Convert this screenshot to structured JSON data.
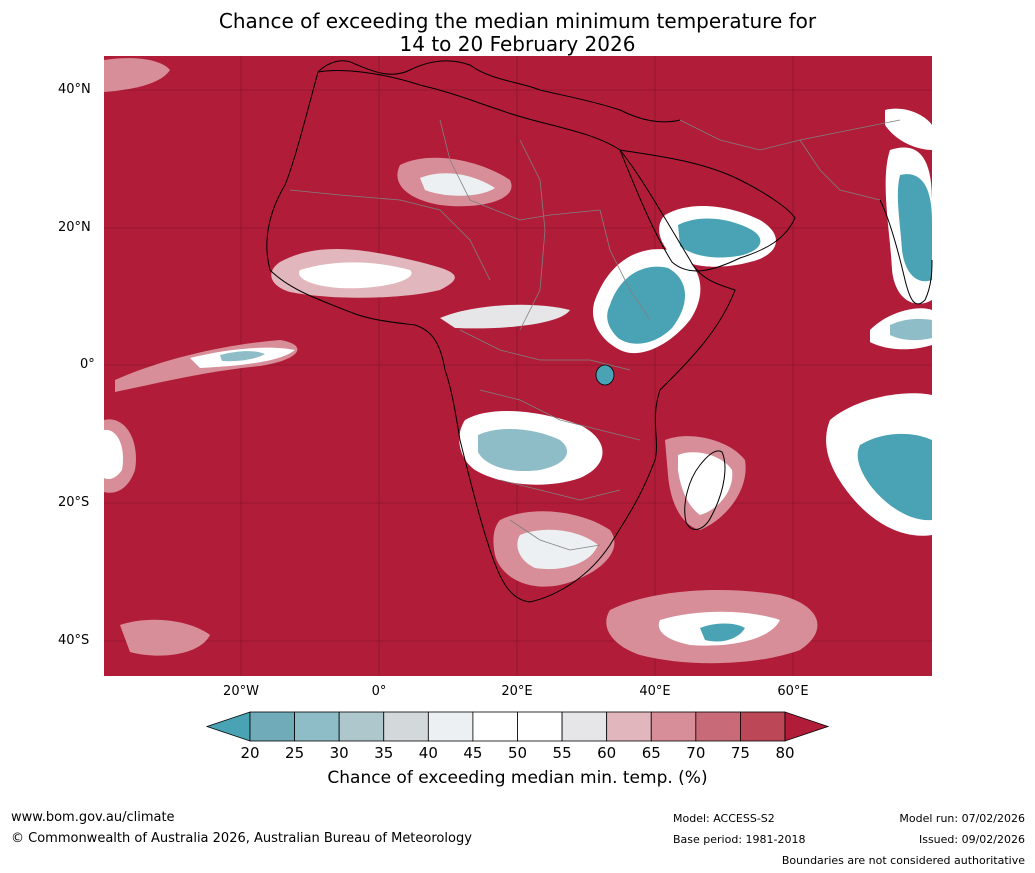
{
  "title_line1": "Chance of exceeding the median minimum temperature for",
  "title_line2": "14 to 20 February 2026",
  "lat_labels": [
    "40°N",
    "20°N",
    "0°",
    "20°S",
    "40°S"
  ],
  "lon_labels": [
    "20°W",
    "0°",
    "20°E",
    "40°E",
    "60°E"
  ],
  "colorbar": {
    "ticks": [
      "20",
      "25",
      "30",
      "35",
      "40",
      "45",
      "50",
      "55",
      "60",
      "65",
      "70",
      "75",
      "80"
    ],
    "colors": [
      "#4aa3b5",
      "#6fabb8",
      "#8ebcc7",
      "#adc7cc",
      "#d3d8da",
      "#ecf0f2",
      "#ffffff",
      "#ffffff",
      "#e6e6e8",
      "#e2b6bd",
      "#d78e98",
      "#c96a78",
      "#bb4757",
      "#b11c38"
    ],
    "label": "Chance of exceeding median min. temp. (%)"
  },
  "footer": {
    "website": "www.bom.gov.au/climate",
    "copyright": "© Commonwealth of Australia 2026, Australian Bureau of Meteorology",
    "model": "Model: ACCESS-S2",
    "base_period": "Base period: 1981-2018",
    "model_run": "Model run: 07/02/2026",
    "issued": "Issued: 09/02/2026",
    "boundaries_note": "Boundaries are not considered authoritative"
  },
  "map": {
    "background_color": "#b11c38",
    "coastline_color": "#000000",
    "border_color": "#808080"
  }
}
